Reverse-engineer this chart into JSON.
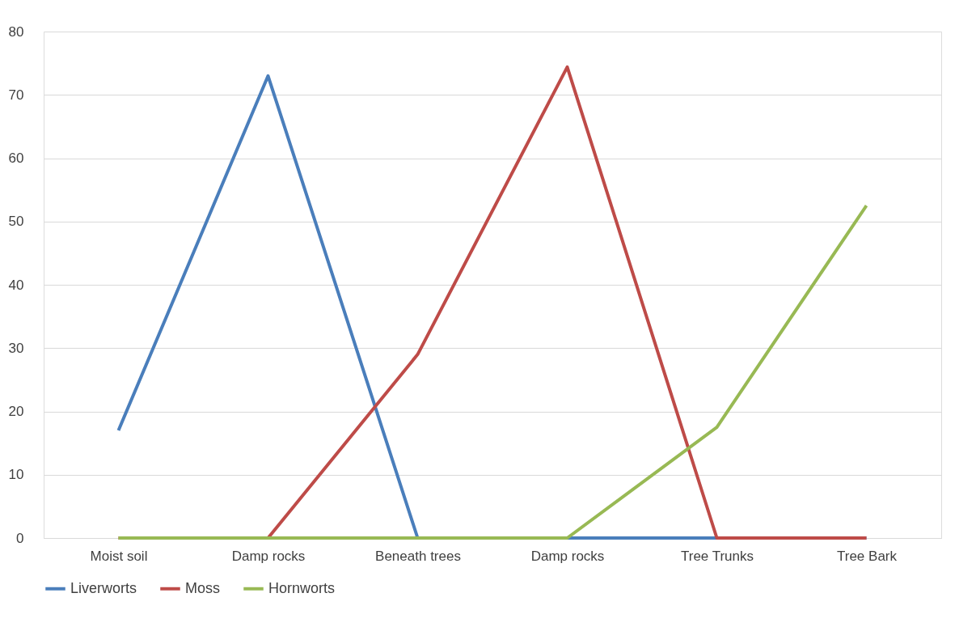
{
  "chart_data": {
    "type": "line",
    "categories": [
      "Moist soil",
      "Damp rocks",
      "Beneath trees",
      "Damp rocks",
      "Tree Trunks",
      "Tree Bark"
    ],
    "series": [
      {
        "name": "Liverworts",
        "color": "#4a7ebb",
        "values": [
          17,
          73,
          0,
          0,
          0,
          0
        ]
      },
      {
        "name": "Moss",
        "color": "#be4b48",
        "values": [
          0,
          0,
          29,
          74.4,
          0,
          0
        ]
      },
      {
        "name": "Hornworts",
        "color": "#98b954",
        "values": [
          0,
          0,
          0,
          0,
          17.5,
          52.5
        ]
      }
    ],
    "ylim": [
      0,
      80
    ],
    "yticks": [
      0,
      10,
      20,
      30,
      40,
      50,
      60,
      70,
      80
    ],
    "grid": "y",
    "legend": "bottom",
    "marker": "none",
    "line_style": "solid"
  }
}
